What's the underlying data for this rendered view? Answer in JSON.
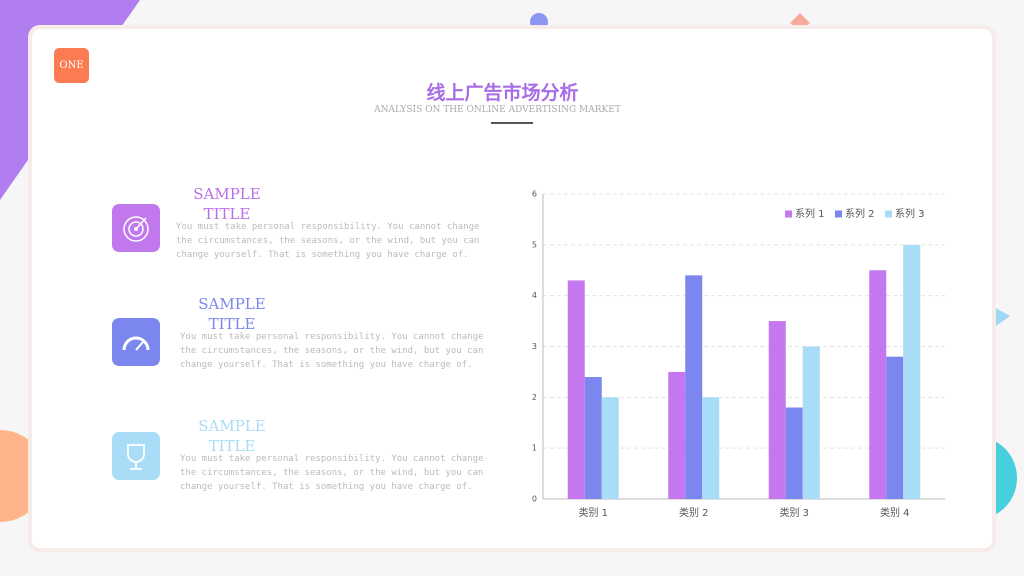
{
  "header": {
    "badge": "ONE",
    "title": "线上广告市场分析",
    "subtitle": "ANALYSIS ON THE ONLINE ADVERTISING MARKET"
  },
  "items": [
    {
      "title": "SAMPLE TITLE",
      "text": "You must take personal responsibility. You cannot change the circumstances, the seasons, or the wind, but you can change yourself. That is something you have charge of."
    },
    {
      "title": "SAMPLE TITLE",
      "text": "You must take personal responsibility. You cannot change the circumstances, the seasons, or the wind, but you can change yourself. That is something you have charge of."
    },
    {
      "title": "SAMPLE TITLE",
      "text": "You must take personal responsibility. You cannot change the circumstances, the seasons, or the wind, but you can change yourself. That is something you have charge of."
    }
  ],
  "chart_data": {
    "type": "bar",
    "categories": [
      "类别 1",
      "类别 2",
      "类别 3",
      "类别 4"
    ],
    "series": [
      {
        "name": "系列 1",
        "color": "#c477ee",
        "values": [
          4.3,
          2.5,
          3.5,
          4.5
        ]
      },
      {
        "name": "系列 2",
        "color": "#7c86ef",
        "values": [
          2.4,
          4.4,
          1.8,
          2.8
        ]
      },
      {
        "name": "系列 3",
        "color": "#a9dcf6",
        "values": [
          2,
          2,
          3,
          5
        ]
      }
    ],
    "ylim": [
      0,
      6
    ],
    "yticks": [
      0,
      1,
      2,
      3,
      4,
      5,
      6
    ],
    "grid": true,
    "legend": "upper right"
  }
}
